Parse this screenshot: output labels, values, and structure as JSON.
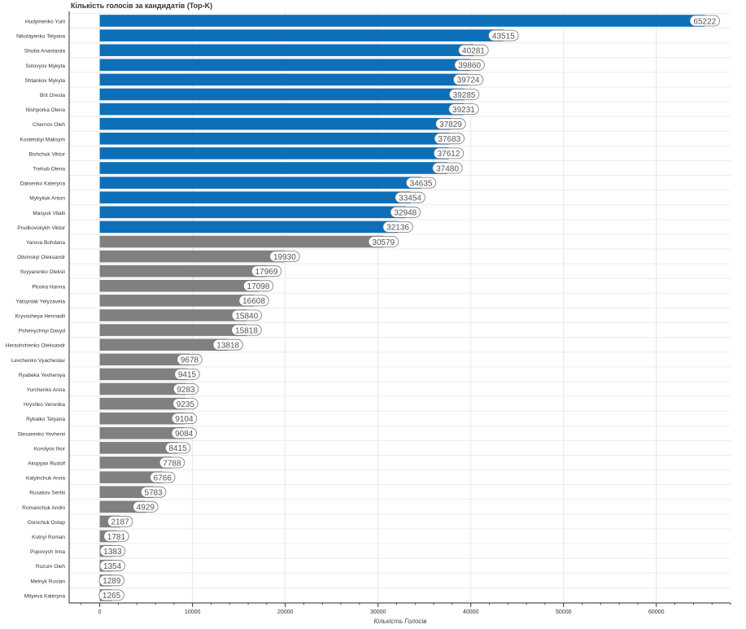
{
  "chart_data": {
    "type": "bar",
    "orientation": "horizontal",
    "title": "Кількість голосів за кандидатів (Top-K)",
    "xlabel": "Кількість Голосів",
    "ylabel": "",
    "xlim": [
      -3300,
      68000
    ],
    "xticks": [
      0,
      10000,
      20000,
      30000,
      40000,
      50000,
      60000
    ],
    "grid": true,
    "top_k": 15,
    "colors": {
      "highlight": "#0d6fb8",
      "rest": "#808080"
    },
    "categories": [
      "Hudymenko Yurii",
      "Nikolayenko Tetyana",
      "Shuba Anastasiia",
      "Solovyov Mykyta",
      "Shtankov Mykyta",
      "Brit Oresta",
      "Nishporka Olena",
      "Chernov Oleh",
      "Kostetskyi Maksym",
      "Bishchuk Viktor",
      "Trehub Olena",
      "Datsenko Kateryna",
      "Mykytiuk Anton",
      "Masyuk Vitalii",
      "Prudkovskykh Viktor",
      "Yarova Bohdana",
      "Olivinskyi Oleksandr",
      "Svyyarenko Oleksii",
      "Ploska Hanna",
      "Yatsyniak Yelyzaveta",
      "Kryvosheya Hennadii",
      "Pshenychnyi Davyd",
      "Herashchenko Oleksandr",
      "Levchenko Vyacheslav",
      "Ryabeka Yevheniya",
      "Yurchenko Anna",
      "Hryshko Veronika",
      "Rybalko Tetyana",
      "Slesarenko Yevhenii",
      "Korolyov Ihor",
      "Akopyan Rudolf",
      "Kalyinchuk Anna",
      "Rusakov Serhii",
      "Romanchuk Andrii",
      "Osinchuk Ostap",
      "Kutnyi Roman",
      "Popovych Inna",
      "Rozum Oleh",
      "Melnyk Ruslan",
      "Mityeva Kateryna"
    ],
    "values": [
      65222,
      43515,
      40281,
      39860,
      39724,
      39285,
      39231,
      37829,
      37683,
      37612,
      37480,
      34635,
      33454,
      32948,
      32136,
      30579,
      19930,
      17969,
      17098,
      16608,
      15840,
      15818,
      13818,
      9678,
      9415,
      9283,
      9235,
      9104,
      9084,
      8415,
      7788,
      6766,
      5783,
      4929,
      2187,
      1781,
      1383,
      1354,
      1289,
      1265
    ]
  }
}
